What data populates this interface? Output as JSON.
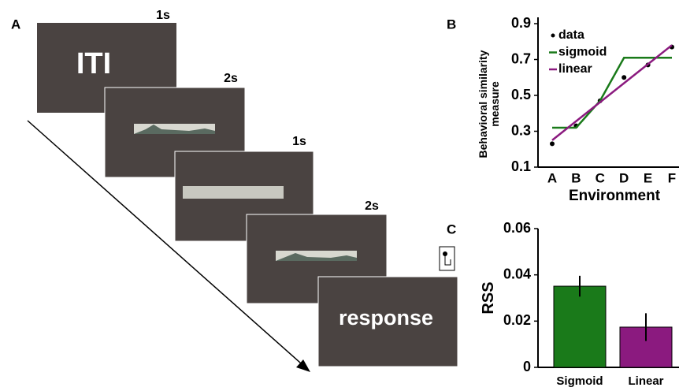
{
  "panel_labels": [
    "A",
    "B",
    "C"
  ],
  "diagram": {
    "screens": [
      {
        "duration": "1s",
        "text": "ITI"
      },
      {
        "duration": "2s"
      },
      {
        "duration": "1s"
      },
      {
        "duration": "2s"
      },
      {
        "text": "response"
      }
    ]
  },
  "chart_data": [
    {
      "type": "line",
      "y_label": "Behavioral similarity measure",
      "x_label": "Environment",
      "categories": [
        "A",
        "B",
        "C",
        "D",
        "E",
        "F"
      ],
      "series": [
        {
          "name": "data",
          "color": "#000000",
          "mode": "markers",
          "values": [
            0.23,
            0.33,
            0.47,
            0.6,
            0.67,
            0.77
          ]
        },
        {
          "name": "sigmoid",
          "color": "#1a7a1a",
          "mode": "lines",
          "values": [
            0.32,
            0.32,
            0.47,
            0.71,
            0.71,
            0.71
          ]
        },
        {
          "name": "linear",
          "color": "#8b1a7f",
          "mode": "lines",
          "values": [
            0.25,
            0.356,
            0.462,
            0.568,
            0.674,
            0.78
          ]
        }
      ],
      "ylim": [
        0.1,
        0.9
      ],
      "yticks": [
        0.1,
        0.3,
        0.5,
        0.7,
        0.9
      ],
      "legend": "upper-left"
    },
    {
      "type": "bar",
      "y_label": "RSS",
      "categories": [
        "Sigmoid",
        "Linear"
      ],
      "values": [
        0.0351,
        0.0174
      ],
      "errors": [
        0.0045,
        0.006
      ],
      "colors": [
        "#1a7a1a",
        "#8b1a7f"
      ],
      "ylim": [
        0,
        0.06
      ],
      "yticks": [
        0,
        0.02,
        0.04,
        0.06
      ]
    }
  ]
}
